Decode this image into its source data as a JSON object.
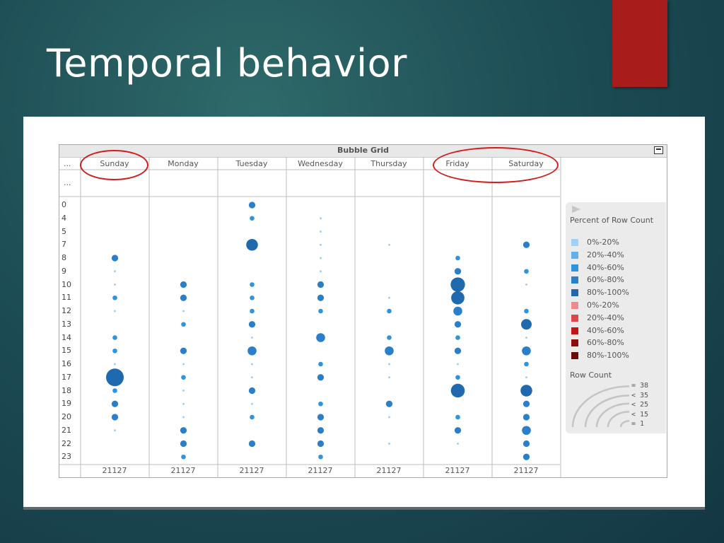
{
  "slide": {
    "title": "Temporal behavior"
  },
  "grid": {
    "title": "Bubble Grid",
    "corner_top": "...",
    "corner_second": "..."
  },
  "chart_data": {
    "type": "scatter",
    "title": "Bubble Grid",
    "columns": [
      "Sunday",
      "Monday",
      "Tuesday",
      "Wednesday",
      "Thursday",
      "Friday",
      "Saturday"
    ],
    "rows": [
      "0",
      "4",
      "5",
      "7",
      "8",
      "9",
      "10",
      "11",
      "12",
      "13",
      "14",
      "15",
      "16",
      "17",
      "18",
      "19",
      "20",
      "21",
      "22",
      "23"
    ],
    "column_totals": [
      "21127",
      "21127",
      "21127",
      "21127",
      "21127",
      "21127",
      "21127"
    ],
    "bubbles": {
      "Sunday": {
        "8": 4,
        "9": 1,
        "10": 1,
        "11": 2,
        "12": 1,
        "14": 2,
        "15": 2,
        "16": 1,
        "17": 38,
        "18": 2,
        "19": 4,
        "20": 4,
        "21": 1
      },
      "Monday": {
        "10": 4,
        "11": 4,
        "12": 1,
        "13": 2,
        "15": 4,
        "16": 1,
        "17": 2,
        "18": 1,
        "19": 1,
        "20": 1,
        "21": 4,
        "22": 4,
        "23": 2
      },
      "Tuesday": {
        "0": 4,
        "4": 2,
        "7": 15,
        "10": 2,
        "11": 2,
        "12": 2,
        "13": 4,
        "14": 1,
        "15": 8,
        "16": 1,
        "17": 1,
        "18": 4,
        "19": 1,
        "20": 2,
        "22": 4
      },
      "Wednesday": {
        "4": 1,
        "5": 1,
        "7": 1,
        "8": 1,
        "9": 1,
        "10": 4,
        "11": 4,
        "12": 2,
        "14": 8,
        "16": 2,
        "17": 4,
        "19": 2,
        "20": 4,
        "21": 4,
        "22": 4,
        "23": 2
      },
      "Thursday": {
        "7": 1,
        "11": 1,
        "12": 2,
        "14": 2,
        "15": 8,
        "16": 1,
        "17": 1,
        "19": 4,
        "20": 1,
        "22": 1
      },
      "Friday": {
        "8": 2,
        "9": 4,
        "10": 24,
        "11": 20,
        "12": 8,
        "13": 4,
        "14": 2,
        "15": 4,
        "16": 1,
        "17": 2,
        "18": 22,
        "20": 2,
        "21": 4,
        "22": 1
      },
      "Saturday": {
        "7": 4,
        "9": 2,
        "10": 1,
        "12": 2,
        "13": 12,
        "14": 1,
        "15": 8,
        "16": 2,
        "17": 1,
        "18": 15,
        "19": 4,
        "20": 4,
        "21": 8,
        "22": 4,
        "23": 4
      }
    },
    "legend": {
      "color_title": "Percent of Row Count",
      "color_items": [
        {
          "label": "0%-20%",
          "color": "#9fd1f7"
        },
        {
          "label": "20%-40%",
          "color": "#5fb0ec"
        },
        {
          "label": "40%-60%",
          "color": "#2f94de"
        },
        {
          "label": "60%-80%",
          "color": "#2a7fc8"
        },
        {
          "label": "80%-100%",
          "color": "#1f6aae"
        },
        {
          "label": "0%-20%",
          "color": "#f08a8a"
        },
        {
          "label": "20%-40%",
          "color": "#dc4848"
        },
        {
          "label": "40%-60%",
          "color": "#c21414"
        },
        {
          "label": "60%-80%",
          "color": "#8e0c0c"
        },
        {
          "label": "80%-100%",
          "color": "#6a0a0a"
        }
      ],
      "size_title": "Row Count",
      "size_items": [
        "= 38",
        "< 35",
        "< 25",
        "< 15",
        "= 1"
      ]
    },
    "highlighted_columns": [
      "Sunday",
      "Friday",
      "Saturday"
    ]
  }
}
